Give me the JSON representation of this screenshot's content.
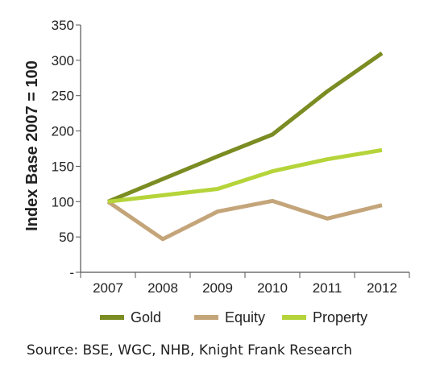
{
  "chart_data": {
    "type": "line",
    "ylabel": "Index Base 2007 = 100",
    "categories": [
      "2007",
      "2008",
      "2009",
      "2010",
      "2011",
      "2012"
    ],
    "y_ticks": [
      "350",
      "300",
      "250",
      "200",
      "150",
      "100",
      "50",
      "-"
    ],
    "ylim": [
      0,
      350
    ],
    "grid": false,
    "legend_position": "bottom",
    "series": [
      {
        "name": "Gold",
        "color": "#7a8c22",
        "values": [
          100,
          132,
          164,
          195,
          256,
          310
        ]
      },
      {
        "name": "Equity",
        "color": "#c4a57a",
        "values": [
          100,
          47,
          86,
          101,
          76,
          95
        ]
      },
      {
        "name": "Property",
        "color": "#b5d43a",
        "values": [
          100,
          109,
          118,
          143,
          160,
          173
        ]
      }
    ]
  },
  "source": "Source: BSE, WGC, NHB, Knight Frank Research"
}
